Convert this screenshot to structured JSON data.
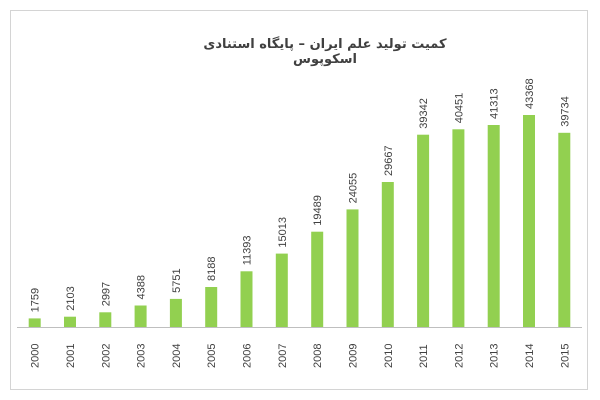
{
  "chart_data": {
    "type": "bar",
    "title": "کمیت تولید علم ایران  – پایگاه استنادی اسکوپوس",
    "xlabel": "",
    "ylabel": "",
    "categories": [
      "2000",
      "2001",
      "2002",
      "2003",
      "2004",
      "2005",
      "2006",
      "2007",
      "2008",
      "2009",
      "2010",
      "2011",
      "2012",
      "2013",
      "2014",
      "2015"
    ],
    "values": [
      1759,
      2103,
      2997,
      4388,
      5751,
      8188,
      11393,
      15013,
      19489,
      24055,
      29667,
      39342,
      40451,
      41313,
      43368,
      39734
    ],
    "ylim": [
      0,
      43368
    ],
    "grid": false,
    "legend": "none",
    "bar_color": "#92d050",
    "data_labels": true
  }
}
